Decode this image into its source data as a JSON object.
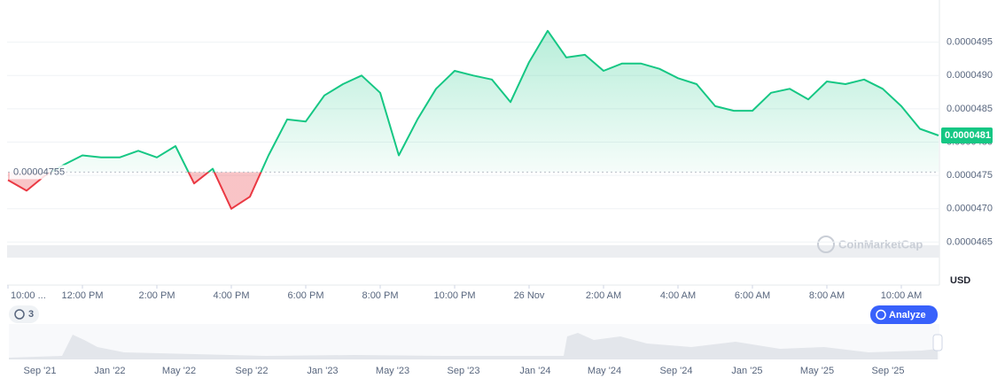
{
  "chart_data": {
    "type": "line",
    "x": [
      0,
      0.5,
      1,
      1.5,
      2,
      2.5,
      3,
      3.5,
      4,
      4.5,
      5,
      5.5,
      6,
      6.5,
      7,
      7.5,
      8,
      8.5,
      9,
      9.5,
      10,
      10.5,
      11,
      11.5,
      12,
      12.5,
      13,
      13.5,
      14,
      14.5,
      15,
      15.5,
      16,
      16.5,
      17,
      17.5,
      18,
      18.5,
      19,
      19.5,
      20,
      20.5,
      21,
      21.5,
      22,
      22.5,
      23,
      23.5,
      24,
      24.5,
      25
    ],
    "values": [
      4.743e-05,
      4.727e-05,
      4.75e-05,
      4.766e-05,
      4.78e-05,
      4.777e-05,
      4.777e-05,
      4.787e-05,
      4.777e-05,
      4.794e-05,
      4.738e-05,
      4.76e-05,
      4.7e-05,
      4.718e-05,
      4.78e-05,
      4.834e-05,
      4.831e-05,
      4.87e-05,
      4.887e-05,
      4.9e-05,
      4.874e-05,
      4.78e-05,
      4.834e-05,
      4.88e-05,
      4.907e-05,
      4.9e-05,
      4.894e-05,
      4.86e-05,
      4.92e-05,
      4.967e-05,
      4.927e-05,
      4.931e-05,
      4.907e-05,
      4.918e-05,
      4.918e-05,
      4.91e-05,
      4.896e-05,
      4.887e-05,
      4.854e-05,
      4.847e-05,
      4.847e-05,
      4.874e-05,
      4.88e-05,
      4.864e-05,
      4.891e-05,
      4.887e-05,
      4.894e-05,
      4.88e-05,
      4.854e-05,
      4.82e-05,
      4.81e-05
    ],
    "xlim": [
      0,
      25
    ],
    "xticks": [
      {
        "value": 0,
        "label": "10:00 ..."
      },
      {
        "value": 2,
        "label": "12:00 PM"
      },
      {
        "value": 4,
        "label": "2:00 PM"
      },
      {
        "value": 6,
        "label": "4:00 PM"
      },
      {
        "value": 8,
        "label": "6:00 PM"
      },
      {
        "value": 10,
        "label": "8:00 PM"
      },
      {
        "value": 12,
        "label": "10:00 PM"
      },
      {
        "value": 14,
        "label": "26 Nov"
      },
      {
        "value": 16,
        "label": "2:00 AM"
      },
      {
        "value": 18,
        "label": "4:00 AM"
      },
      {
        "value": 20,
        "label": "6:00 AM"
      },
      {
        "value": 22,
        "label": "8:00 AM"
      },
      {
        "value": 24,
        "label": "10:00 AM"
      }
    ],
    "ylim": [
      4.6e-05,
      5e-05
    ],
    "yticks": [
      {
        "value": 4.65e-05,
        "label": "0.0000465"
      },
      {
        "value": 4.7e-05,
        "label": "0.0000470"
      },
      {
        "value": 4.75e-05,
        "label": "0.0000475"
      },
      {
        "value": 4.8e-05,
        "label": "0.0000480"
      },
      {
        "value": 4.85e-05,
        "label": "0.0000485"
      },
      {
        "value": 4.9e-05,
        "label": "0.0000490"
      },
      {
        "value": 4.95e-05,
        "label": "0.0000495"
      }
    ],
    "grid": true,
    "baseline": 4.755e-05,
    "last_price": 4.81e-05,
    "colors": {
      "up": "#16c784",
      "down": "#ea3943"
    },
    "y_unit": "USD",
    "watermark": "CoinMarketCap",
    "badge": "3",
    "button": "Analyze",
    "navigator_labels": [
      "Sep '21",
      "Jan '22",
      "May '22",
      "Sep '22",
      "Jan '23",
      "May '23",
      "Sep '23",
      "Jan '24",
      "May '24",
      "Sep '24",
      "Jan '25",
      "May '25",
      "Sep '25"
    ]
  }
}
